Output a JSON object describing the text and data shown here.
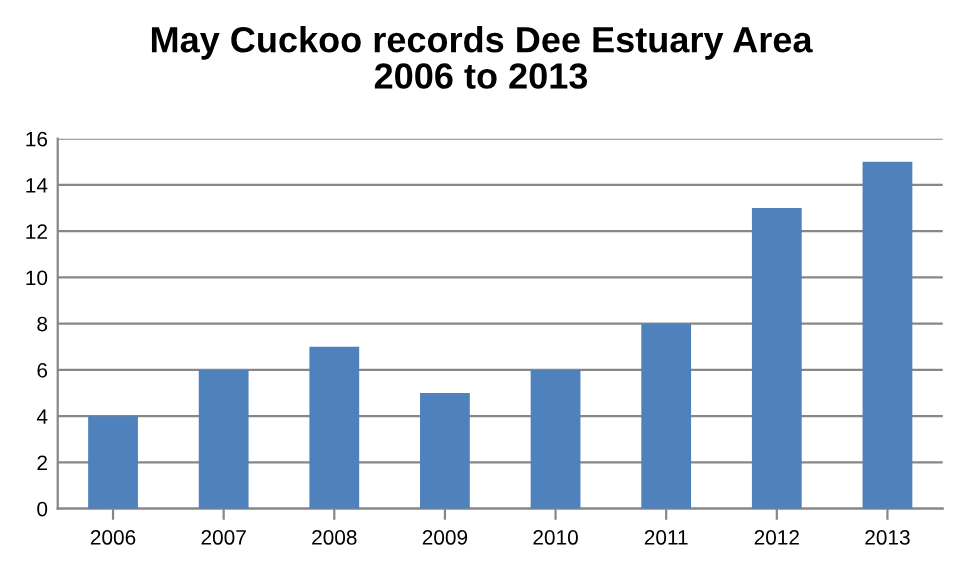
{
  "chart_data": {
    "type": "bar",
    "title": "May Cuckoo records Dee Estuary Area\n2006 to 2013",
    "categories": [
      "2006",
      "2007",
      "2008",
      "2009",
      "2010",
      "2011",
      "2012",
      "2013"
    ],
    "values": [
      4,
      6,
      7,
      5,
      6,
      8,
      13,
      15
    ],
    "color": "#4f81bd",
    "ylim": [
      0,
      16
    ],
    "yticks": [
      0,
      2,
      4,
      6,
      8,
      10,
      12,
      14,
      16
    ],
    "grid": "y",
    "legend": false
  }
}
